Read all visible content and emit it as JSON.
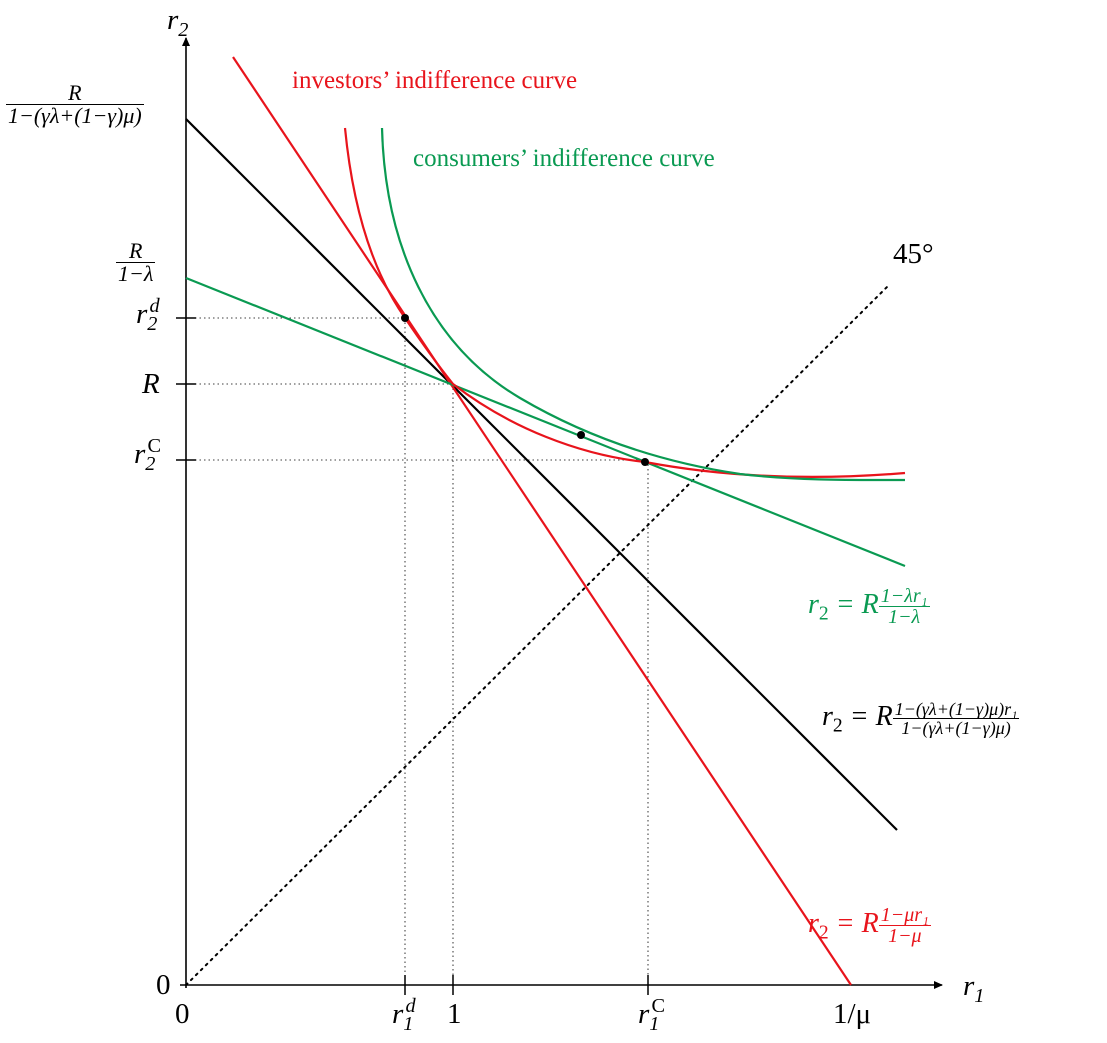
{
  "axes": {
    "y_label": {
      "base": "r",
      "sub": "2"
    },
    "x_label": {
      "base": "r",
      "sub": "1"
    },
    "origin_y": "0",
    "origin_x": "0"
  },
  "y_ticks": {
    "top_fraction": {
      "num": "R",
      "den": "1−(γλ+(1−γ)μ)"
    },
    "mid_fraction": {
      "num": "R",
      "den": "1−λ"
    },
    "r2d": {
      "base": "r",
      "sub": "2",
      "sup": "d"
    },
    "R": "R",
    "r2C": {
      "base": "r",
      "sub": "2",
      "sup": "C"
    }
  },
  "x_ticks": {
    "r1d": {
      "base": "r",
      "sub": "1",
      "sup": "d"
    },
    "one": "1",
    "r1C": {
      "base": "r",
      "sub": "1",
      "sup": "C"
    },
    "one_over_mu": "1/μ"
  },
  "labels": {
    "investors_curve": "investors’ indifference curve",
    "consumers_curve": "consumers’ indifference curve",
    "angle_45": "45°",
    "green_line_eq": {
      "lhs": "r",
      "lhs_sub": "2",
      "eq": " = R",
      "num": "1−λr₁",
      "den": "1−λ"
    },
    "black_line_eq": {
      "lhs": "r",
      "lhs_sub": "2",
      "eq": " = R",
      "num": "1−(γλ+(1−γ)μ)r₁",
      "den": "1−(γλ+(1−γ)μ)"
    },
    "red_line_eq": {
      "lhs": "r",
      "lhs_sub": "2",
      "eq": " = R",
      "num": "1−μr₁",
      "den": "1−μ"
    }
  },
  "colors": {
    "red": "#e8141c",
    "green": "#0a9a52",
    "black": "#000000"
  }
}
